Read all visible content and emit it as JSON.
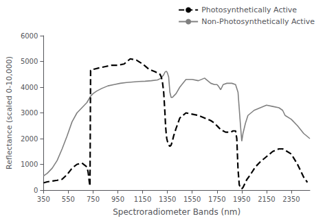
{
  "chart_data": {
    "type": "line",
    "title": "",
    "xlabel": "Spectroradiometer Bands (nm)",
    "ylabel": "Reflectance (scaled 0-10,000)",
    "xlim": [
      350,
      2500
    ],
    "ylim": [
      0,
      6000
    ],
    "xticks": [
      350,
      550,
      750,
      950,
      1150,
      1350,
      1550,
      1750,
      1950,
      2150,
      2350
    ],
    "yticks": [
      0,
      1000,
      2000,
      3000,
      4000,
      5000,
      6000
    ],
    "grid": false,
    "legend": "upper right",
    "series": [
      {
        "name": "Photosynthetically Active",
        "color": "#000000",
        "line_style": "dashed",
        "x": [
          350,
          380,
          420,
          460,
          500,
          540,
          580,
          620,
          660,
          700,
          710,
          720,
          725,
          730,
          740,
          760,
          800,
          850,
          900,
          950,
          1000,
          1050,
          1100,
          1150,
          1200,
          1250,
          1290,
          1300,
          1310,
          1320,
          1330,
          1335,
          1340,
          1345,
          1350,
          1360,
          1370,
          1380,
          1390,
          1400,
          1420,
          1450,
          1500,
          1550,
          1600,
          1650,
          1700,
          1730,
          1750,
          1760,
          1780,
          1800,
          1820,
          1840,
          1860,
          1880,
          1900,
          1910,
          1920,
          1930,
          1940,
          1950,
          1960,
          1970,
          1990,
          2020,
          2060,
          2100,
          2150,
          2200,
          2250,
          2280,
          2300,
          2350,
          2400,
          2450,
          2480
        ],
        "values": [
          280,
          320,
          350,
          380,
          420,
          600,
          850,
          1000,
          1050,
          900,
          700,
          300,
          150,
          4650,
          4700,
          4700,
          4750,
          4800,
          4850,
          4850,
          4900,
          5100,
          5050,
          4900,
          4700,
          4600,
          4500,
          4400,
          4200,
          3800,
          3000,
          2500,
          2200,
          2000,
          1900,
          1750,
          1700,
          1750,
          1900,
          2100,
          2400,
          2800,
          3000,
          2950,
          2900,
          2800,
          2700,
          2600,
          2500,
          2450,
          2350,
          2300,
          2250,
          2250,
          2250,
          2300,
          2300,
          2000,
          800,
          200,
          100,
          50,
          100,
          200,
          400,
          600,
          900,
          1100,
          1300,
          1500,
          1600,
          1600,
          1550,
          1400,
          1000,
          500,
          300
        ]
      },
      {
        "name": "Non-Photosynthetically Active",
        "color": "#808080",
        "line_style": "solid",
        "x": [
          350,
          380,
          420,
          460,
          500,
          540,
          580,
          620,
          660,
          700,
          730,
          750,
          780,
          820,
          870,
          920,
          970,
          1020,
          1070,
          1120,
          1170,
          1220,
          1270,
          1300,
          1310,
          1320,
          1330,
          1340,
          1345,
          1350,
          1360,
          1370,
          1380,
          1390,
          1400,
          1420,
          1450,
          1500,
          1550,
          1600,
          1650,
          1700,
          1730,
          1750,
          1760,
          1780,
          1800,
          1830,
          1870,
          1900,
          1920,
          1940,
          1950,
          1960,
          1980,
          2000,
          2050,
          2100,
          2150,
          2200,
          2250,
          2280,
          2300,
          2350,
          2400,
          2450,
          2500
        ],
        "values": [
          550,
          650,
          850,
          1150,
          1600,
          2100,
          2650,
          3000,
          3200,
          3400,
          3650,
          3750,
          3850,
          3950,
          4050,
          4100,
          4150,
          4180,
          4200,
          4220,
          4230,
          4250,
          4280,
          4350,
          4420,
          4480,
          4580,
          4620,
          4600,
          4550,
          4400,
          3800,
          3600,
          3600,
          3650,
          3750,
          4000,
          4300,
          4300,
          4250,
          4350,
          4150,
          4100,
          4100,
          4050,
          3900,
          4100,
          4150,
          4150,
          4100,
          3800,
          2500,
          1900,
          2200,
          2600,
          2900,
          3100,
          3200,
          3300,
          3250,
          3200,
          3100,
          2900,
          2750,
          2500,
          2200,
          2000
        ]
      }
    ]
  }
}
